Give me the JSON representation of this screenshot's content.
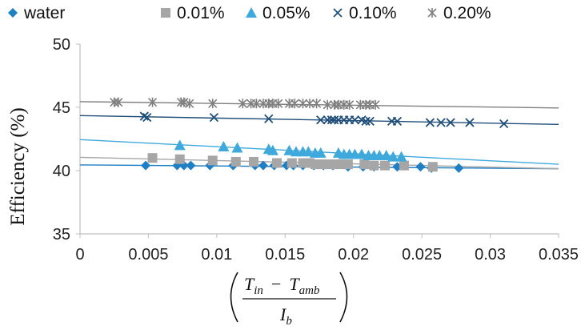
{
  "chart_data": {
    "type": "scatter",
    "title": "",
    "ylabel": "Efficiency (%)",
    "xlabel": {
      "t_in": "T",
      "in_sub": "in",
      "minus": "−",
      "t_amb": "T",
      "amb_sub": "amb",
      "i_b": "I",
      "b_sub": "b"
    },
    "xlim": [
      0,
      0.035
    ],
    "ylim": [
      35,
      50
    ],
    "xticks": [
      "0",
      "0.005",
      "0.01",
      "0.015",
      "0.02",
      "0.025",
      "0.03",
      "0.035"
    ],
    "xtick_values": [
      0,
      0.005,
      0.01,
      0.015,
      0.02,
      0.025,
      0.03,
      0.035
    ],
    "yticks": [
      "35",
      "40",
      "45",
      "50"
    ],
    "ytick_values": [
      35,
      40,
      45,
      50
    ],
    "grid": false,
    "legend_position": "top",
    "series": [
      {
        "name": "water",
        "marker": "diamond",
        "color": "#1F7FC4",
        "points": [
          [
            0.0048,
            40.4
          ],
          [
            0.0071,
            40.4
          ],
          [
            0.0076,
            40.4
          ],
          [
            0.0081,
            40.4
          ],
          [
            0.0095,
            40.4
          ],
          [
            0.0112,
            40.4
          ],
          [
            0.0128,
            40.4
          ],
          [
            0.0134,
            40.4
          ],
          [
            0.0142,
            40.4
          ],
          [
            0.0151,
            40.4
          ],
          [
            0.0156,
            40.4
          ],
          [
            0.0163,
            40.4
          ],
          [
            0.0171,
            40.4
          ],
          [
            0.0178,
            40.4
          ],
          [
            0.0185,
            40.4
          ],
          [
            0.0196,
            40.3
          ],
          [
            0.0207,
            40.3
          ],
          [
            0.0215,
            40.3
          ],
          [
            0.0232,
            40.3
          ],
          [
            0.0249,
            40.3
          ],
          [
            0.0257,
            40.2
          ],
          [
            0.0277,
            40.2
          ]
        ],
        "fit": [
          40.45,
          40.15
        ]
      },
      {
        "name": "0.01%",
        "marker": "square",
        "color": "#A6A6A6",
        "points": [
          [
            0.0053,
            41.0
          ],
          [
            0.0073,
            40.9
          ],
          [
            0.0097,
            40.8
          ],
          [
            0.0114,
            40.7
          ],
          [
            0.0127,
            40.7
          ],
          [
            0.0144,
            40.6
          ],
          [
            0.0155,
            40.6
          ],
          [
            0.0163,
            40.6
          ],
          [
            0.0168,
            40.6
          ],
          [
            0.0172,
            40.5
          ],
          [
            0.0177,
            40.5
          ],
          [
            0.0182,
            40.5
          ],
          [
            0.0186,
            40.5
          ],
          [
            0.0191,
            40.5
          ],
          [
            0.0196,
            40.5
          ],
          [
            0.0208,
            40.5
          ],
          [
            0.0215,
            40.4
          ],
          [
            0.0223,
            40.4
          ],
          [
            0.0237,
            40.4
          ],
          [
            0.0258,
            40.3
          ]
        ],
        "fit": [
          41.05,
          40.15
        ]
      },
      {
        "name": "0.05%",
        "marker": "triangle",
        "color": "#3FA9DC",
        "points": [
          [
            0.0073,
            42.0
          ],
          [
            0.0105,
            41.9
          ],
          [
            0.0115,
            41.8
          ],
          [
            0.0138,
            41.7
          ],
          [
            0.0141,
            41.6
          ],
          [
            0.0153,
            41.6
          ],
          [
            0.0158,
            41.5
          ],
          [
            0.0163,
            41.5
          ],
          [
            0.0167,
            41.5
          ],
          [
            0.0172,
            41.4
          ],
          [
            0.0176,
            41.4
          ],
          [
            0.0189,
            41.4
          ],
          [
            0.0193,
            41.3
          ],
          [
            0.0197,
            41.3
          ],
          [
            0.0201,
            41.3
          ],
          [
            0.0206,
            41.3
          ],
          [
            0.0211,
            41.2
          ],
          [
            0.0215,
            41.2
          ],
          [
            0.0219,
            41.2
          ],
          [
            0.0224,
            41.2
          ],
          [
            0.0229,
            41.1
          ],
          [
            0.0235,
            41.1
          ]
        ],
        "fit": [
          42.45,
          40.5
        ]
      },
      {
        "name": "0.10%",
        "marker": "x",
        "color": "#1F4E79",
        "points": [
          [
            0.0047,
            44.3
          ],
          [
            0.0049,
            44.2
          ],
          [
            0.0098,
            44.2
          ],
          [
            0.0138,
            44.1
          ],
          [
            0.0176,
            44.0
          ],
          [
            0.0181,
            44.0
          ],
          [
            0.0184,
            44.0
          ],
          [
            0.0186,
            44.0
          ],
          [
            0.0189,
            44.0
          ],
          [
            0.0193,
            44.0
          ],
          [
            0.0197,
            44.0
          ],
          [
            0.0201,
            44.0
          ],
          [
            0.0206,
            44.0
          ],
          [
            0.0209,
            43.9
          ],
          [
            0.0212,
            43.9
          ],
          [
            0.0228,
            43.9
          ],
          [
            0.0232,
            43.9
          ],
          [
            0.0256,
            43.8
          ],
          [
            0.0264,
            43.8
          ],
          [
            0.0271,
            43.8
          ],
          [
            0.0285,
            43.8
          ],
          [
            0.031,
            43.7
          ]
        ],
        "fit": [
          44.35,
          43.65
        ]
      },
      {
        "name": "0.20%",
        "marker": "asterisk",
        "color": "#7F7F7F",
        "points": [
          [
            0.0025,
            45.4
          ],
          [
            0.0028,
            45.4
          ],
          [
            0.0053,
            45.4
          ],
          [
            0.0074,
            45.4
          ],
          [
            0.0076,
            45.4
          ],
          [
            0.008,
            45.3
          ],
          [
            0.0097,
            45.3
          ],
          [
            0.0119,
            45.3
          ],
          [
            0.0125,
            45.3
          ],
          [
            0.0129,
            45.3
          ],
          [
            0.0134,
            45.3
          ],
          [
            0.0138,
            45.3
          ],
          [
            0.0141,
            45.3
          ],
          [
            0.0145,
            45.3
          ],
          [
            0.0153,
            45.3
          ],
          [
            0.0157,
            45.3
          ],
          [
            0.0163,
            45.3
          ],
          [
            0.0168,
            45.3
          ],
          [
            0.0173,
            45.3
          ],
          [
            0.0181,
            45.2
          ],
          [
            0.0186,
            45.2
          ],
          [
            0.0189,
            45.2
          ],
          [
            0.0193,
            45.2
          ],
          [
            0.0197,
            45.2
          ],
          [
            0.0205,
            45.2
          ],
          [
            0.0209,
            45.2
          ],
          [
            0.0212,
            45.2
          ],
          [
            0.0216,
            45.2
          ]
        ],
        "fit": [
          45.45,
          44.95
        ]
      }
    ]
  }
}
